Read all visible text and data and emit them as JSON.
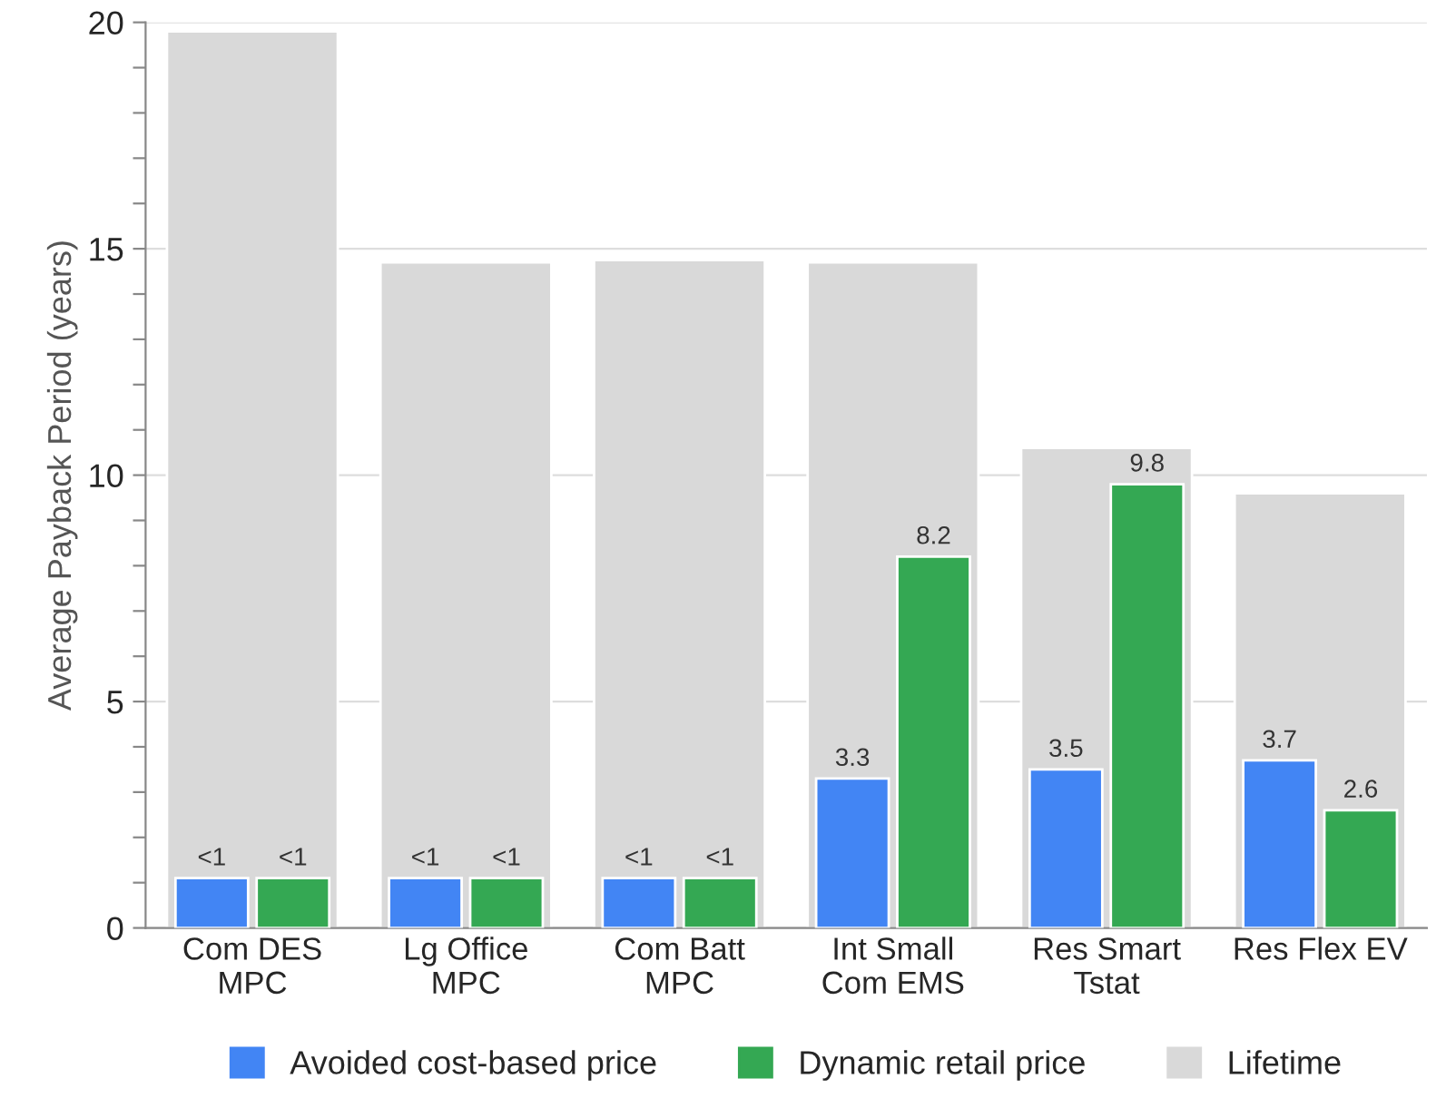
{
  "chart_data": {
    "type": "bar",
    "ylabel": "Average Payback Period (years)",
    "categories": [
      "Com DES\nMPC",
      "Lg Office\nMPC",
      "Com Batt\nMPC",
      "Int Small\nCom EMS",
      "Res Smart\nTstat",
      "Res Flex EV"
    ],
    "series": [
      {
        "name": "Avoided cost-based price",
        "color": "#4285f4",
        "values": [
          1.1,
          1.1,
          1.1,
          3.3,
          3.5,
          3.7
        ],
        "value_labels": [
          "<1",
          "<1",
          "<1",
          "3.3",
          "3.5",
          "3.7"
        ]
      },
      {
        "name": "Dynamic retail price",
        "color": "#34a853",
        "values": [
          1.1,
          1.1,
          1.1,
          8.2,
          9.8,
          2.6
        ],
        "value_labels": [
          "<1",
          "<1",
          "<1",
          "8.2",
          "9.8",
          "2.6"
        ]
      },
      {
        "name": "Lifetime",
        "color": "#d9d9d9",
        "values": [
          19.8,
          14.7,
          14.75,
          14.7,
          10.6,
          9.6
        ]
      }
    ],
    "ylim": [
      0,
      20
    ],
    "yticks": [
      0,
      {
        "value": 1,
        "label": null
      },
      {
        "value": 2,
        "label": null
      },
      {
        "value": 3,
        "label": null
      },
      {
        "value": 4,
        "label": null
      },
      5,
      {
        "value": 6,
        "label": null
      },
      {
        "value": 7,
        "label": null
      },
      {
        "value": 8,
        "label": null
      },
      {
        "value": 9,
        "label": null
      },
      10,
      {
        "value": 11,
        "label": null
      },
      {
        "value": 12,
        "label": null
      },
      {
        "value": 13,
        "label": null
      },
      {
        "value": 14,
        "label": null
      },
      15,
      {
        "value": 16,
        "label": null
      },
      {
        "value": 17,
        "label": null
      },
      {
        "value": 18,
        "label": null
      },
      {
        "value": 19,
        "label": null
      },
      20
    ],
    "grid": "y",
    "legend": "bottom"
  }
}
